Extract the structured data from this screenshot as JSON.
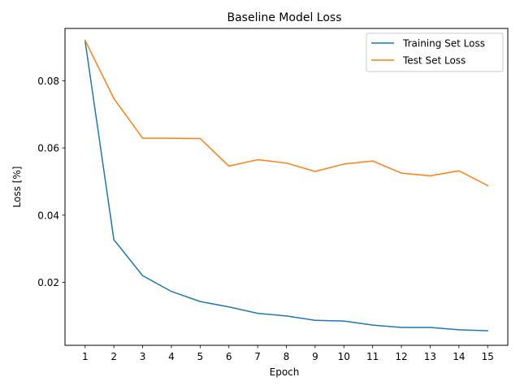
{
  "chart_data": {
    "type": "line",
    "title": "Baseline Model Loss",
    "xlabel": "Epoch",
    "ylabel": "Loss [%]",
    "x": [
      1,
      2,
      3,
      4,
      5,
      6,
      7,
      8,
      9,
      10,
      11,
      12,
      13,
      14,
      15
    ],
    "xticks": [
      "1",
      "2",
      "3",
      "4",
      "5",
      "6",
      "7",
      "8",
      "9",
      "10",
      "11",
      "12",
      "13",
      "14",
      "15"
    ],
    "yticks": [
      "0.02",
      "0.04",
      "0.06",
      "0.08"
    ],
    "xlim": [
      0.3,
      15.7
    ],
    "ylim": [
      0.00128,
      0.09555
    ],
    "grid": false,
    "legend_position": "top-right",
    "series": [
      {
        "name": "Training Set Loss",
        "color": "#1f77b4",
        "values": [
          0.0918,
          0.0327,
          0.022,
          0.0173,
          0.0143,
          0.0127,
          0.0108,
          0.01,
          0.0087,
          0.0085,
          0.0073,
          0.0066,
          0.0066,
          0.0059,
          0.0056
        ]
      },
      {
        "name": "Test Set Loss",
        "color": "#ff7f0e",
        "values": [
          0.092,
          0.0747,
          0.0629,
          0.0629,
          0.0628,
          0.0546,
          0.0565,
          0.0555,
          0.053,
          0.0552,
          0.0561,
          0.0525,
          0.0517,
          0.0532,
          0.0488
        ]
      }
    ]
  }
}
